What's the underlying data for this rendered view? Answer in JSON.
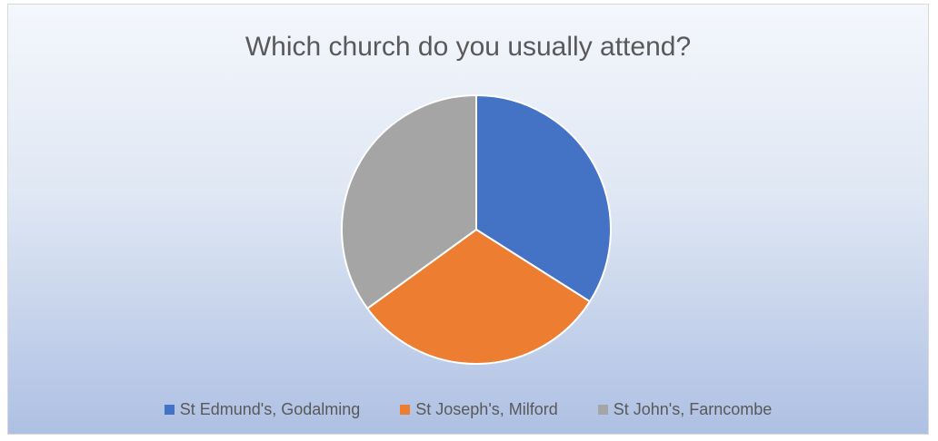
{
  "chart_data": {
    "type": "pie",
    "title": "Which church do you usually attend?",
    "categories": [
      "St Edmund's, Godalming",
      "St Joseph's, Milford",
      "St John's, Farncombe"
    ],
    "values": [
      34,
      31,
      35
    ],
    "colors": [
      "#4472c4",
      "#ed7d31",
      "#a5a5a5"
    ],
    "legend_position": "bottom",
    "start_angle": "12 o'clock, clockwise"
  }
}
